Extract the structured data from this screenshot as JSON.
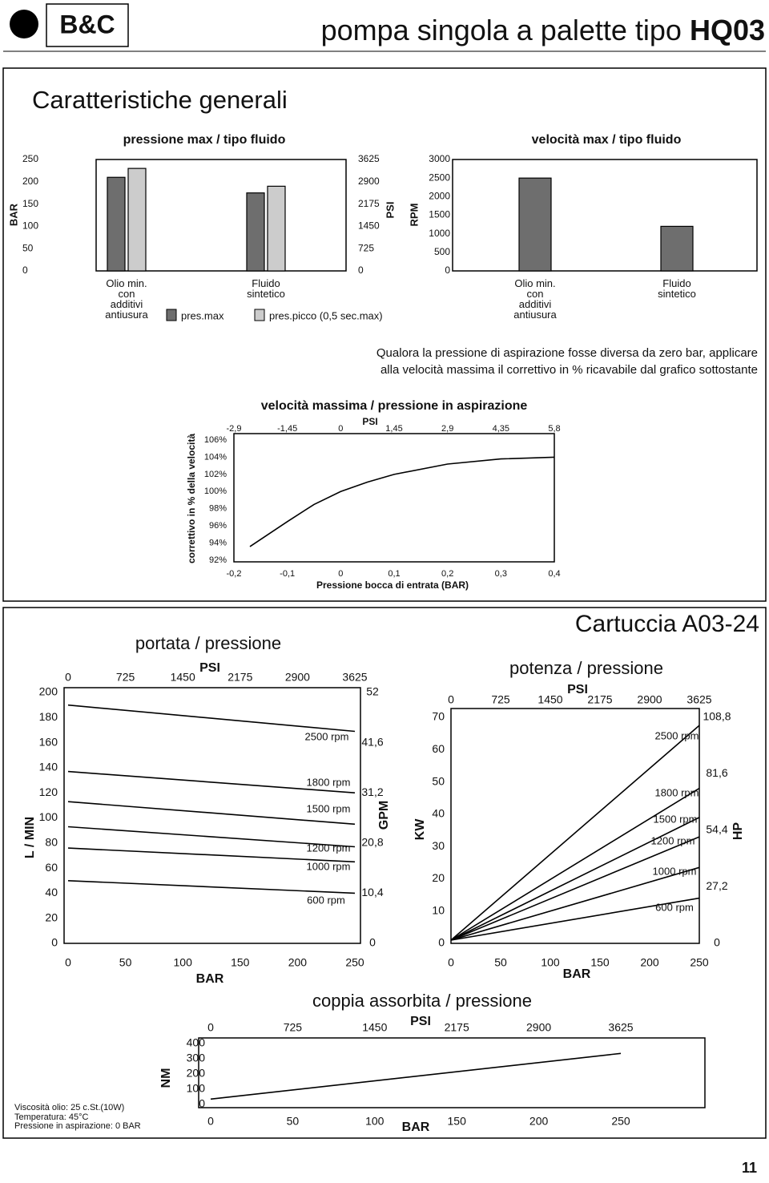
{
  "header": {
    "logo": "B&C",
    "title": "pompa singola a palette tipo",
    "model": "HQ03"
  },
  "section_title": "Caratteristiche generali",
  "note": [
    "Qualora la pressione di aspirazione fosse diversa da zero bar, applicare",
    "alla velocità massima il correttivo in % ricavabile dal grafico sottostante"
  ],
  "cartridge_title": "Cartuccia A03-24",
  "conditions": [
    "Viscosità olio: 25 c.St.(10W)",
    "Temperatura: 45°C",
    "Pressione in aspirazione: 0 BAR"
  ],
  "page_number": "11",
  "chart_data": [
    {
      "type": "bar",
      "title": "pressione max / tipo fluido",
      "ylabel": "BAR",
      "y2label": "PSI",
      "categories": [
        "Olio min.\ncon\nadditivi\nantiusura",
        "Fluido\nsintetico"
      ],
      "series": [
        {
          "name": "pres.max",
          "color": "#6e6e6e",
          "values": [
            210,
            175
          ]
        },
        {
          "name": "pres.picco (0,5 sec.max)",
          "color": "#cccccc",
          "values": [
            230,
            190
          ]
        }
      ],
      "ylim": [
        0,
        250
      ],
      "yticks": [
        0,
        50,
        100,
        150,
        200,
        250
      ],
      "y2lim": [
        0,
        3625
      ],
      "y2ticks": [
        0,
        725,
        1450,
        2175,
        2900,
        3625
      ]
    },
    {
      "type": "bar",
      "title": "velocità  max / tipo fluido",
      "ylabel": "RPM",
      "categories": [
        "Olio min.\ncon\nadditivi\nantiusura",
        "Fluido\nsintetico"
      ],
      "series": [
        {
          "color": "#6e6e6e",
          "values": [
            2500,
            1200
          ]
        }
      ],
      "ylim": [
        0,
        3000
      ],
      "yticks": [
        0,
        500,
        1000,
        1500,
        2000,
        2500,
        3000
      ]
    },
    {
      "type": "line",
      "title": "velocità massima / pressione in aspirazione",
      "xlabel": "Pressione bocca di entrata (BAR)",
      "x2label": "PSI",
      "ylabel": "correttivo in % della velocità",
      "x": [
        -0.17,
        -0.1,
        -0.05,
        0,
        0.05,
        0.1,
        0.2,
        0.3,
        0.4
      ],
      "series": [
        {
          "color": "#000000",
          "values": [
            93.6,
            96.5,
            98.5,
            100,
            101.1,
            102,
            103.2,
            103.8,
            104
          ]
        }
      ],
      "xlim": [
        -0.2,
        0.4
      ],
      "xticks": [
        {
          "value": -0.2,
          "label": "-0,2"
        },
        {
          "value": -0.1,
          "label": "-0,1"
        },
        0,
        {
          "value": 0.1,
          "label": "0,1"
        },
        {
          "value": 0.2,
          "label": "0,2"
        },
        {
          "value": 0.3,
          "label": "0,3"
        },
        {
          "value": 0.4,
          "label": "0,4"
        }
      ],
      "x2lim": [
        -2.9,
        5.8
      ],
      "x2ticks": [
        {
          "value": -2.9,
          "label": "-2,9"
        },
        {
          "value": -1.45,
          "label": "-1,45"
        },
        0,
        {
          "value": 1.45,
          "label": "1,45"
        },
        {
          "value": 2.9,
          "label": "2,9"
        },
        {
          "value": 4.35,
          "label": "4,35"
        },
        {
          "value": 5.8,
          "label": "5,8"
        }
      ],
      "ylim": [
        92,
        106
      ],
      "yticks": [
        {
          "value": 92,
          "label": "92%"
        },
        {
          "value": 94,
          "label": "94%"
        },
        {
          "value": 96,
          "label": "96%"
        },
        {
          "value": 98,
          "label": "98%"
        },
        {
          "value": 100,
          "label": "100%"
        },
        {
          "value": 102,
          "label": "102%"
        },
        {
          "value": 104,
          "label": "104%"
        },
        {
          "value": 106,
          "label": "106%"
        }
      ]
    },
    {
      "type": "line",
      "title": "portata / pressione",
      "xlabel": "BAR",
      "x2label": "PSI",
      "ylabel": "L / MIN",
      "y2label": "GPM",
      "x": [
        0,
        250
      ],
      "series": [
        {
          "name": "2500 rpm",
          "color": "#000000",
          "values": [
            190,
            169
          ]
        },
        {
          "name": "1800 rpm",
          "color": "#000000",
          "values": [
            137,
            120
          ]
        },
        {
          "name": "1500 rpm",
          "color": "#000000",
          "values": [
            113,
            95
          ]
        },
        {
          "name": "1200 rpm",
          "color": "#000000",
          "values": [
            93,
            77
          ]
        },
        {
          "name": "1000 rpm",
          "color": "#000000",
          "values": [
            76,
            65
          ]
        },
        {
          "name": "600 rpm",
          "color": "#000000",
          "values": [
            50,
            40
          ]
        }
      ],
      "xlim": [
        0,
        250
      ],
      "xticks": [
        0,
        50,
        100,
        150,
        200,
        250
      ],
      "x2lim": [
        0,
        3625
      ],
      "x2ticks": [
        0,
        725,
        1450,
        2175,
        2900,
        3625
      ],
      "ylim": [
        0,
        200
      ],
      "yticks": [
        0,
        20,
        40,
        60,
        80,
        100,
        120,
        140,
        160,
        180,
        200
      ],
      "y2lim": [
        0,
        52
      ],
      "y2ticks": [
        0,
        {
          "value": 10.4,
          "label": "10,4"
        },
        {
          "value": 20.8,
          "label": "20,8"
        },
        {
          "value": 31.2,
          "label": "31,2"
        },
        {
          "value": 41.6,
          "label": "41,6"
        },
        52
      ]
    },
    {
      "type": "line",
      "title": "potenza / pressione",
      "xlabel": "BAR",
      "x2label": "PSI",
      "ylabel": "KW",
      "y2label": "HP",
      "x": [
        0,
        250
      ],
      "series": [
        {
          "name": "2500 rpm",
          "color": "#000000",
          "values": [
            1,
            67.5
          ]
        },
        {
          "name": "1800 rpm",
          "color": "#000000",
          "values": [
            1,
            48
          ]
        },
        {
          "name": "1500 rpm",
          "color": "#000000",
          "values": [
            1,
            39
          ]
        },
        {
          "name": "1200 rpm",
          "color": "#000000",
          "values": [
            1,
            33
          ]
        },
        {
          "name": "1000 rpm",
          "color": "#000000",
          "values": [
            1,
            23.5
          ]
        },
        {
          "name": "600 rpm",
          "color": "#000000",
          "values": [
            1,
            14
          ]
        }
      ],
      "xlim": [
        0,
        250
      ],
      "xticks": [
        0,
        50,
        100,
        150,
        200,
        250
      ],
      "x2lim": [
        0,
        3625
      ],
      "x2ticks": [
        0,
        725,
        1450,
        2175,
        2900,
        3625
      ],
      "ylim": [
        0,
        70
      ],
      "yticks": [
        0,
        10,
        20,
        30,
        40,
        50,
        60,
        70
      ],
      "y2lim": [
        0,
        108.8
      ],
      "y2ticks": [
        0,
        {
          "value": 27.2,
          "label": "27,2"
        },
        {
          "value": 54.4,
          "label": "54,4"
        },
        {
          "value": 81.6,
          "label": "81,6"
        },
        {
          "value": 108.8,
          "label": "108,8"
        }
      ]
    },
    {
      "type": "line",
      "title": "coppia assorbita / pressione",
      "xlabel": "BAR",
      "x2label": "PSI",
      "ylabel": "NM",
      "x": [
        0,
        250
      ],
      "series": [
        {
          "color": "#000000",
          "values": [
            35,
            335
          ]
        }
      ],
      "xlim": [
        0,
        250
      ],
      "xticks": [
        0,
        50,
        100,
        150,
        200,
        250
      ],
      "x2lim": [
        0,
        3625
      ],
      "x2ticks": [
        0,
        725,
        1450,
        2175,
        2900,
        3625
      ],
      "ylim": [
        0,
        400
      ],
      "yticks": [
        0,
        100,
        200,
        300,
        400
      ]
    }
  ]
}
